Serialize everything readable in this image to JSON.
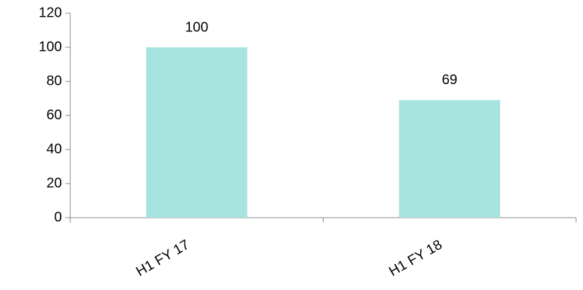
{
  "chart_data": {
    "type": "bar",
    "categories": [
      "H1 FY 17",
      "H1 FY 18"
    ],
    "values": [
      100,
      69
    ],
    "color": "#a8e4df",
    "ylim": [
      0,
      120
    ],
    "yticks": [
      0,
      20,
      40,
      60,
      80,
      100,
      120
    ],
    "grid": false
  }
}
